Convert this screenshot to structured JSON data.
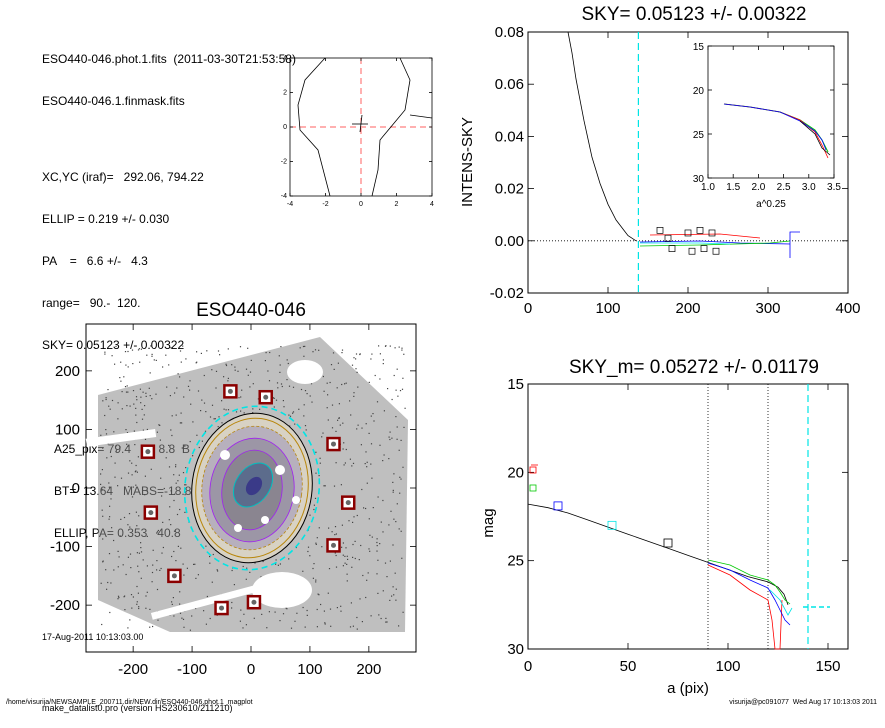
{
  "header": {
    "line1": "ESO440-046.phot.1.fits  (2011-03-30T21:53:58)",
    "line2": "ESO440-046.1.finmask.fits",
    "xcyc": "XC,YC (iraf)=   292.06, 794.22",
    "ellip": "ELLIP = 0.219 +/- 0.030",
    "pa": "PA    =   6.6 +/-   4.3",
    "range": "range=   90.-  120.",
    "sky": "SKY= 0.05123 +/- 0.00322",
    "a25": "A25_pix= 79.4   T= 8.8  B",
    "bt": "BT=  13.64   MABS=-18.87",
    "ellip_pa": "ELLIP, PA= 0.353   40.8",
    "date": "17-Aug-2011 10:13:03.00",
    "program": "make_datalist0.pro (version HS230610/211210)"
  },
  "footer": {
    "left": "/home/visurija/NEWSAMPLE_200711.dir/NEW.dir/ESO440-046.phot.1_magplot",
    "right": "visurija@pc091077  Wed Aug 17 10:13:03 2011"
  },
  "colors": {
    "cyan": "#00e5e5",
    "red": "#ff0000",
    "green": "#00c800",
    "blue": "#0000ff",
    "dash_red": "#ff6060",
    "darkred": "#8b0000",
    "gold": "#b8860b"
  },
  "chart_data": [
    {
      "id": "contour",
      "type": "contour",
      "xlim": [
        -4,
        4
      ],
      "ylim": [
        -4,
        4
      ],
      "xticks": [
        "-4",
        "-2",
        "0",
        "2",
        "4"
      ],
      "yticks": [
        "-4",
        "-2",
        "0",
        "2",
        "4"
      ]
    },
    {
      "id": "sky",
      "type": "line",
      "title": "SKY= 0.05123 +/- 0.00322",
      "xlabel": "",
      "ylabel": "INTENS-SKY",
      "xlim": [
        0,
        400
      ],
      "ylim": [
        -0.02,
        0.08
      ],
      "xticks": [
        "0",
        "100",
        "200",
        "300",
        "400"
      ],
      "yticks": [
        "-0.02",
        "0.00",
        "0.02",
        "0.04",
        "0.06",
        "0.08"
      ],
      "vline_x": 138,
      "profile": [
        [
          50,
          0.085
        ],
        [
          55,
          0.072
        ],
        [
          60,
          0.062
        ],
        [
          65,
          0.054
        ],
        [
          70,
          0.046
        ],
        [
          75,
          0.039
        ],
        [
          80,
          0.032
        ],
        [
          85,
          0.027
        ],
        [
          90,
          0.022
        ],
        [
          95,
          0.018
        ],
        [
          100,
          0.014
        ],
        [
          105,
          0.011
        ],
        [
          110,
          0.008
        ],
        [
          115,
          0.006
        ],
        [
          120,
          0.004
        ],
        [
          125,
          0.002
        ],
        [
          130,
          0.001
        ],
        [
          135,
          0.0
        ]
      ],
      "squares": [
        [
          165,
          0.004
        ],
        [
          175,
          0.001
        ],
        [
          180,
          -0.003
        ],
        [
          200,
          0.003
        ],
        [
          205,
          -0.004
        ],
        [
          215,
          0.004
        ],
        [
          220,
          -0.003
        ],
        [
          230,
          0.003
        ],
        [
          235,
          -0.004
        ]
      ],
      "inset": {
        "xlabel": "a^0.25",
        "xlim": [
          1.0,
          3.5
        ],
        "ylim": [
          30,
          15
        ],
        "xticks": [
          "1.0",
          "1.5",
          "2.0",
          "2.5",
          "3.0",
          "3.5"
        ],
        "yticks": [
          "15",
          "20",
          "25",
          "30"
        ]
      }
    },
    {
      "id": "image",
      "type": "image",
      "title": "ESO440-046",
      "xlim": [
        -280,
        280
      ],
      "ylim": [
        -280,
        280
      ],
      "xticks": [
        "-200",
        "-100",
        "0",
        "100",
        "200"
      ],
      "yticks": [
        "-200",
        "-100",
        "0",
        "100",
        "200"
      ],
      "stars": [
        [
          -35,
          165
        ],
        [
          25,
          155
        ],
        [
          140,
          75
        ],
        [
          -175,
          62
        ],
        [
          -170,
          -42
        ],
        [
          165,
          -25
        ],
        [
          140,
          -98
        ],
        [
          -130,
          -150
        ],
        [
          -50,
          -205
        ],
        [
          5,
          -195
        ]
      ]
    },
    {
      "id": "mag",
      "type": "line",
      "title": "SKY_m=  0.05272 +/- 0.01179",
      "xlabel": "a (pix)",
      "ylabel": "mag",
      "xlim": [
        0,
        160
      ],
      "ylim": [
        30,
        15
      ],
      "xticks": [
        "0",
        "50",
        "100",
        "150"
      ],
      "yticks": [
        "15",
        "20",
        "25",
        "30"
      ],
      "vlines": [
        90,
        120
      ],
      "sky_vline": 140,
      "profile": [
        [
          0,
          21.8
        ],
        [
          10,
          22.0
        ],
        [
          20,
          22.3
        ],
        [
          30,
          22.7
        ],
        [
          40,
          23.1
        ],
        [
          50,
          23.5
        ],
        [
          60,
          23.9
        ],
        [
          70,
          24.3
        ],
        [
          80,
          24.7
        ],
        [
          90,
          25.1
        ],
        [
          100,
          25.5
        ],
        [
          110,
          25.9
        ],
        [
          120,
          26.2
        ],
        [
          125,
          26.5
        ],
        [
          128,
          26.9
        ],
        [
          130,
          27.5
        ]
      ],
      "squares": [
        [
          15,
          21.9
        ],
        [
          42,
          23.0
        ],
        [
          70,
          24.0
        ]
      ]
    }
  ]
}
